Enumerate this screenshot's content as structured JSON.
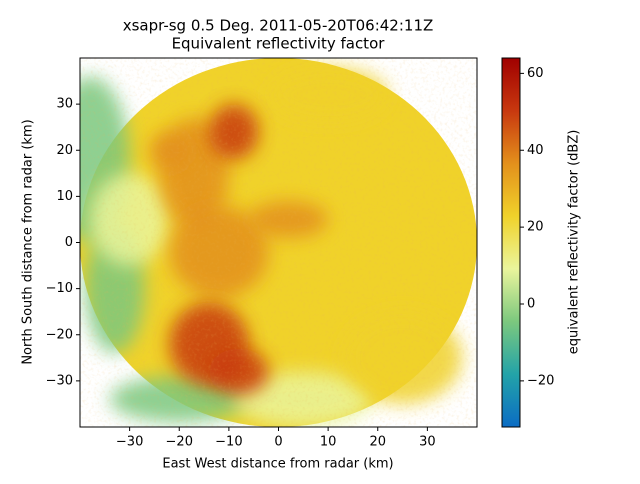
{
  "chart_data": {
    "type": "radar_ppi",
    "title": "xsapr-sg 0.5 Deg. 2011-05-20T06:42:11Z",
    "subtitle": "Equivalent reflectivity factor",
    "x_label": "East West distance from radar (km)",
    "y_label": "North South distance from radar (km)",
    "xlim": [
      -40,
      40
    ],
    "ylim": [
      -40,
      40
    ],
    "xticks": [
      {
        "value": -30,
        "label": "−30"
      },
      {
        "value": -20,
        "label": "−20"
      },
      {
        "value": -10,
        "label": "−10"
      },
      0,
      10,
      20,
      30
    ],
    "yticks": [
      {
        "value": -30,
        "label": "−30"
      },
      {
        "value": -20,
        "label": "−20"
      },
      {
        "value": -10,
        "label": "−10"
      },
      0,
      10,
      20,
      30
    ],
    "colorbar": {
      "label": "equivalent reflectivity factor (dBZ)",
      "lim": [
        -32,
        64
      ],
      "ticks": [
        {
          "value": -20,
          "label": "−20"
        },
        0,
        20,
        40,
        60
      ],
      "colors": [
        "#0b6cc4",
        "#23a3a8",
        "#7cc87e",
        "#eaf59c",
        "#f0d22a",
        "#e3901c",
        "#c8380f",
        "#a00000"
      ]
    },
    "range_km": 40
  }
}
